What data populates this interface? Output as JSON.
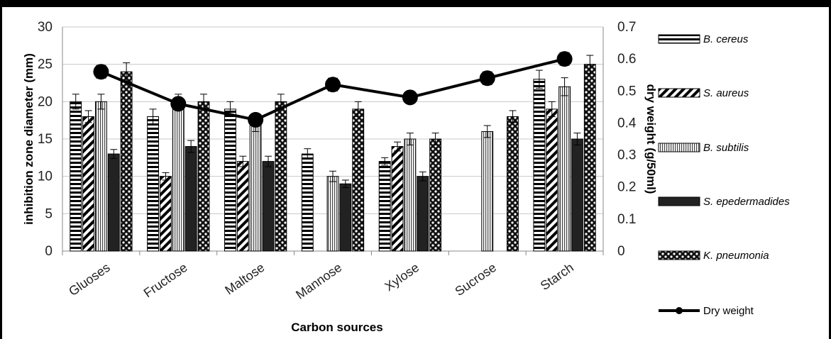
{
  "chart_data": {
    "type": "bar",
    "categories": [
      "Glucoses",
      "Fructose",
      "Maltose",
      "Mannose",
      "Xylose",
      "Sucrose",
      "Starch"
    ],
    "category_labels": [
      "Gluoses",
      "Fructose",
      "Maltose",
      "Mannose",
      "Xylose",
      "Sucrose",
      "Starch"
    ],
    "xlabel": "Carbon sources",
    "ylabel": "inhibition zone diameter (mm)",
    "y2label": "dry weight (g/50ml)",
    "ylim": [
      0,
      30
    ],
    "y2lim": [
      0,
      0.7
    ],
    "yticks": [
      "0",
      "5",
      "10",
      "15",
      "20",
      "25",
      "30"
    ],
    "y2ticks": [
      "0",
      "0.1",
      "0.2",
      "0.3",
      "0.4",
      "0.5",
      "0.6",
      "0.7"
    ],
    "grid": true,
    "legend_position": "right",
    "series": [
      {
        "name": "B. cereus",
        "pattern": "horizontal-stripes",
        "values": [
          20,
          18,
          19,
          13,
          12,
          0,
          23
        ],
        "errors": [
          1,
          1,
          1,
          0.7,
          0.5,
          0,
          1.2
        ]
      },
      {
        "name": "S. aureus",
        "pattern": "diagonal-stripes",
        "values": [
          18,
          10,
          12,
          0,
          14,
          0,
          19
        ],
        "errors": [
          0.8,
          0.5,
          0.7,
          0,
          0.6,
          0,
          1
        ]
      },
      {
        "name": "B. subtilis",
        "pattern": "vertical-stripes",
        "values": [
          20,
          20,
          17,
          10,
          15,
          16,
          22
        ],
        "errors": [
          1,
          1,
          1,
          0.7,
          0.8,
          0.8,
          1.2
        ]
      },
      {
        "name": "S. epedermadides",
        "pattern": "solid-dark",
        "values": [
          13,
          14,
          12,
          9,
          10,
          0,
          15
        ],
        "errors": [
          0.6,
          0.8,
          0.7,
          0.5,
          0.6,
          0,
          0.8
        ]
      },
      {
        "name": "K. pneumonia",
        "pattern": "checker",
        "values": [
          24,
          20,
          20,
          19,
          15,
          18,
          25
        ],
        "errors": [
          1.2,
          1,
          1,
          1,
          0.8,
          0.8,
          1.2
        ]
      }
    ],
    "line_series": {
      "name": "Dry weight",
      "axis": "secondary",
      "values": [
        0.56,
        0.46,
        0.41,
        0.52,
        0.48,
        0.54,
        0.6
      ],
      "errors": [
        0.02,
        0.015,
        0.015,
        0.02,
        0.015,
        0.02,
        0.02
      ]
    }
  }
}
